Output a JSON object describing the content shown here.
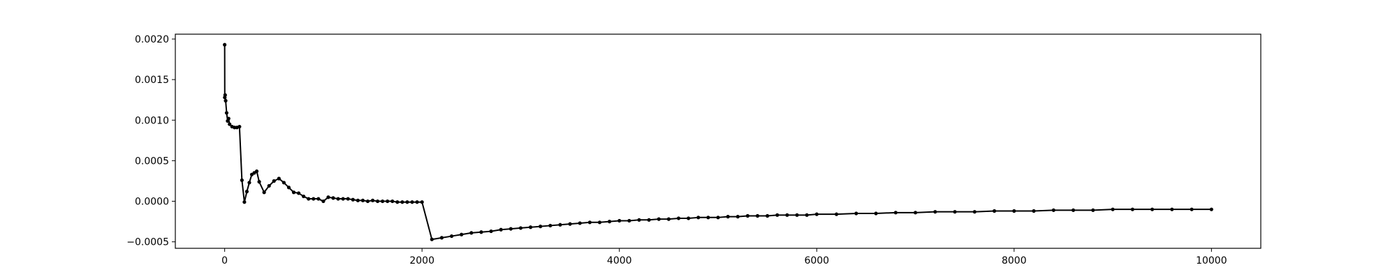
{
  "chart_data": {
    "type": "line",
    "title": "",
    "xlabel": "",
    "ylabel": "",
    "xlim": [
      -500,
      10500
    ],
    "ylim": [
      -0.00058,
      0.00206
    ],
    "grid": false,
    "legend": "none",
    "x_ticks": [
      {
        "value": 0,
        "label": "0"
      },
      {
        "value": 2000,
        "label": "2000"
      },
      {
        "value": 4000,
        "label": "4000"
      },
      {
        "value": 6000,
        "label": "6000"
      },
      {
        "value": 8000,
        "label": "8000"
      },
      {
        "value": 10000,
        "label": "10000"
      }
    ],
    "y_ticks": [
      {
        "value": -0.0005,
        "label": "−0.0005"
      },
      {
        "value": 0.0,
        "label": "0.0000"
      },
      {
        "value": 0.0005,
        "label": "0.0005"
      },
      {
        "value": 0.001,
        "label": "0.0010"
      },
      {
        "value": 0.0015,
        "label": "0.0015"
      },
      {
        "value": 0.002,
        "label": "0.0020"
      }
    ],
    "series": [
      {
        "color": "#000000",
        "marker": "circle",
        "points": [
          [
            0,
            0.00193
          ],
          [
            1,
            0.00128
          ],
          [
            5,
            0.00131
          ],
          [
            10,
            0.00124
          ],
          [
            20,
            0.00109
          ],
          [
            30,
            0.00099
          ],
          [
            40,
            0.00102
          ],
          [
            50,
            0.00095
          ],
          [
            75,
            0.00092
          ],
          [
            100,
            0.00091
          ],
          [
            125,
            0.00091
          ],
          [
            150,
            0.00092
          ],
          [
            175,
            0.00026
          ],
          [
            200,
            -1e-05
          ],
          [
            225,
            0.00012
          ],
          [
            250,
            0.00023
          ],
          [
            275,
            0.00033
          ],
          [
            300,
            0.00035
          ],
          [
            325,
            0.00037
          ],
          [
            350,
            0.00024
          ],
          [
            400,
            0.00011
          ],
          [
            450,
            0.00019
          ],
          [
            500,
            0.00025
          ],
          [
            550,
            0.00028
          ],
          [
            600,
            0.00023
          ],
          [
            650,
            0.00017
          ],
          [
            700,
            0.00011
          ],
          [
            750,
            0.0001
          ],
          [
            800,
            6e-05
          ],
          [
            850,
            3e-05
          ],
          [
            900,
            3e-05
          ],
          [
            950,
            3e-05
          ],
          [
            1000,
            0.0
          ],
          [
            1050,
            5e-05
          ],
          [
            1100,
            4e-05
          ],
          [
            1150,
            3e-05
          ],
          [
            1200,
            3e-05
          ],
          [
            1250,
            3e-05
          ],
          [
            1300,
            2e-05
          ],
          [
            1350,
            1e-05
          ],
          [
            1400,
            1e-05
          ],
          [
            1450,
            0.0
          ],
          [
            1500,
            1e-05
          ],
          [
            1550,
            0.0
          ],
          [
            1600,
            0.0
          ],
          [
            1650,
            0.0
          ],
          [
            1700,
            0.0
          ],
          [
            1750,
            -1e-05
          ],
          [
            1800,
            -1e-05
          ],
          [
            1850,
            -1e-05
          ],
          [
            1900,
            -1e-05
          ],
          [
            1950,
            -1e-05
          ],
          [
            2000,
            -1e-05
          ],
          [
            2100,
            -0.00047
          ],
          [
            2200,
            -0.00045
          ],
          [
            2300,
            -0.00043
          ],
          [
            2400,
            -0.00041
          ],
          [
            2500,
            -0.00039
          ],
          [
            2600,
            -0.00038
          ],
          [
            2700,
            -0.00037
          ],
          [
            2800,
            -0.00035
          ],
          [
            2900,
            -0.00034
          ],
          [
            3000,
            -0.00033
          ],
          [
            3100,
            -0.00032
          ],
          [
            3200,
            -0.00031
          ],
          [
            3300,
            -0.0003
          ],
          [
            3400,
            -0.00029
          ],
          [
            3500,
            -0.00028
          ],
          [
            3600,
            -0.00027
          ],
          [
            3700,
            -0.00026
          ],
          [
            3800,
            -0.00026
          ],
          [
            3900,
            -0.00025
          ],
          [
            4000,
            -0.00024
          ],
          [
            4100,
            -0.00024
          ],
          [
            4200,
            -0.00023
          ],
          [
            4300,
            -0.00023
          ],
          [
            4400,
            -0.00022
          ],
          [
            4500,
            -0.00022
          ],
          [
            4600,
            -0.00021
          ],
          [
            4700,
            -0.00021
          ],
          [
            4800,
            -0.0002
          ],
          [
            4900,
            -0.0002
          ],
          [
            5000,
            -0.0002
          ],
          [
            5100,
            -0.00019
          ],
          [
            5200,
            -0.00019
          ],
          [
            5300,
            -0.00018
          ],
          [
            5400,
            -0.00018
          ],
          [
            5500,
            -0.00018
          ],
          [
            5600,
            -0.00017
          ],
          [
            5700,
            -0.00017
          ],
          [
            5800,
            -0.00017
          ],
          [
            5900,
            -0.00017
          ],
          [
            6000,
            -0.00016
          ],
          [
            6200,
            -0.00016
          ],
          [
            6400,
            -0.00015
          ],
          [
            6600,
            -0.00015
          ],
          [
            6800,
            -0.00014
          ],
          [
            7000,
            -0.00014
          ],
          [
            7200,
            -0.00013
          ],
          [
            7400,
            -0.00013
          ],
          [
            7600,
            -0.00013
          ],
          [
            7800,
            -0.00012
          ],
          [
            8000,
            -0.00012
          ],
          [
            8200,
            -0.00012
          ],
          [
            8400,
            -0.00011
          ],
          [
            8600,
            -0.00011
          ],
          [
            8800,
            -0.00011
          ],
          [
            9000,
            -0.0001
          ],
          [
            9200,
            -0.0001
          ],
          [
            9400,
            -0.0001
          ],
          [
            9600,
            -0.0001
          ],
          [
            9800,
            -0.0001
          ],
          [
            10000,
            -0.0001
          ]
        ]
      }
    ]
  }
}
